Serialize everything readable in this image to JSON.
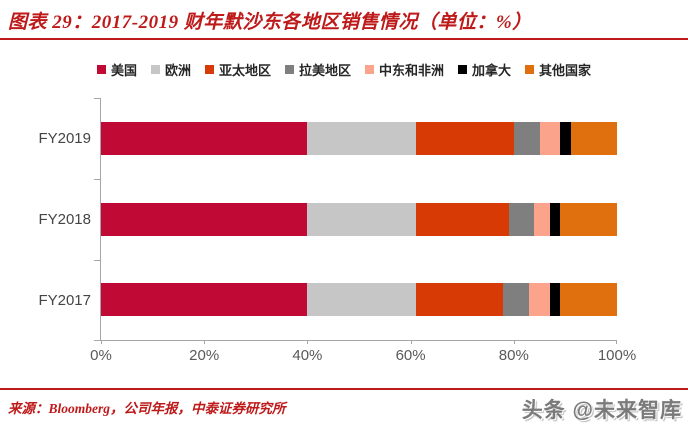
{
  "title": "图表 29：2017-2019 财年默沙东各地区销售情况（单位：%）",
  "colors": {
    "accent_red": "#BE1A1A",
    "axis_gray": "#A6A6A6",
    "tick_label_gray": "#595959",
    "category_label_gray": "#454545"
  },
  "chart_data": {
    "type": "bar",
    "orientation": "horizontal",
    "stacked": true,
    "title": "图表 29：2017-2019 财年默沙东各地区销售情况（单位：%）",
    "categories": [
      "FY2019",
      "FY2018",
      "FY2017"
    ],
    "series": [
      {
        "name": "美国",
        "color": "#C00A35",
        "values": [
          40,
          40,
          40
        ]
      },
      {
        "name": "欧洲",
        "color": "#C6C6C6",
        "values": [
          21,
          21,
          21
        ]
      },
      {
        "name": "亚太地区",
        "color": "#D83A06",
        "values": [
          19,
          18,
          17
        ]
      },
      {
        "name": "拉美地区",
        "color": "#7F7F7F",
        "values": [
          5,
          5,
          5
        ]
      },
      {
        "name": "中东和非洲",
        "color": "#FCA38C",
        "values": [
          4,
          3,
          4
        ]
      },
      {
        "name": "加拿大",
        "color": "#000000",
        "values": [
          2,
          2,
          2
        ]
      },
      {
        "name": "其他国家",
        "color": "#E06F0E",
        "values": [
          9,
          11,
          11
        ]
      }
    ],
    "xlim": [
      0,
      100
    ],
    "x_ticks": [
      "0%",
      "20%",
      "40%",
      "60%",
      "80%",
      "100%"
    ],
    "grid": false,
    "legend_position": "top"
  },
  "footer": {
    "source": "来源：Bloomberg，公司年报，中泰证券研究所"
  },
  "watermark": "头条 @未来智库"
}
